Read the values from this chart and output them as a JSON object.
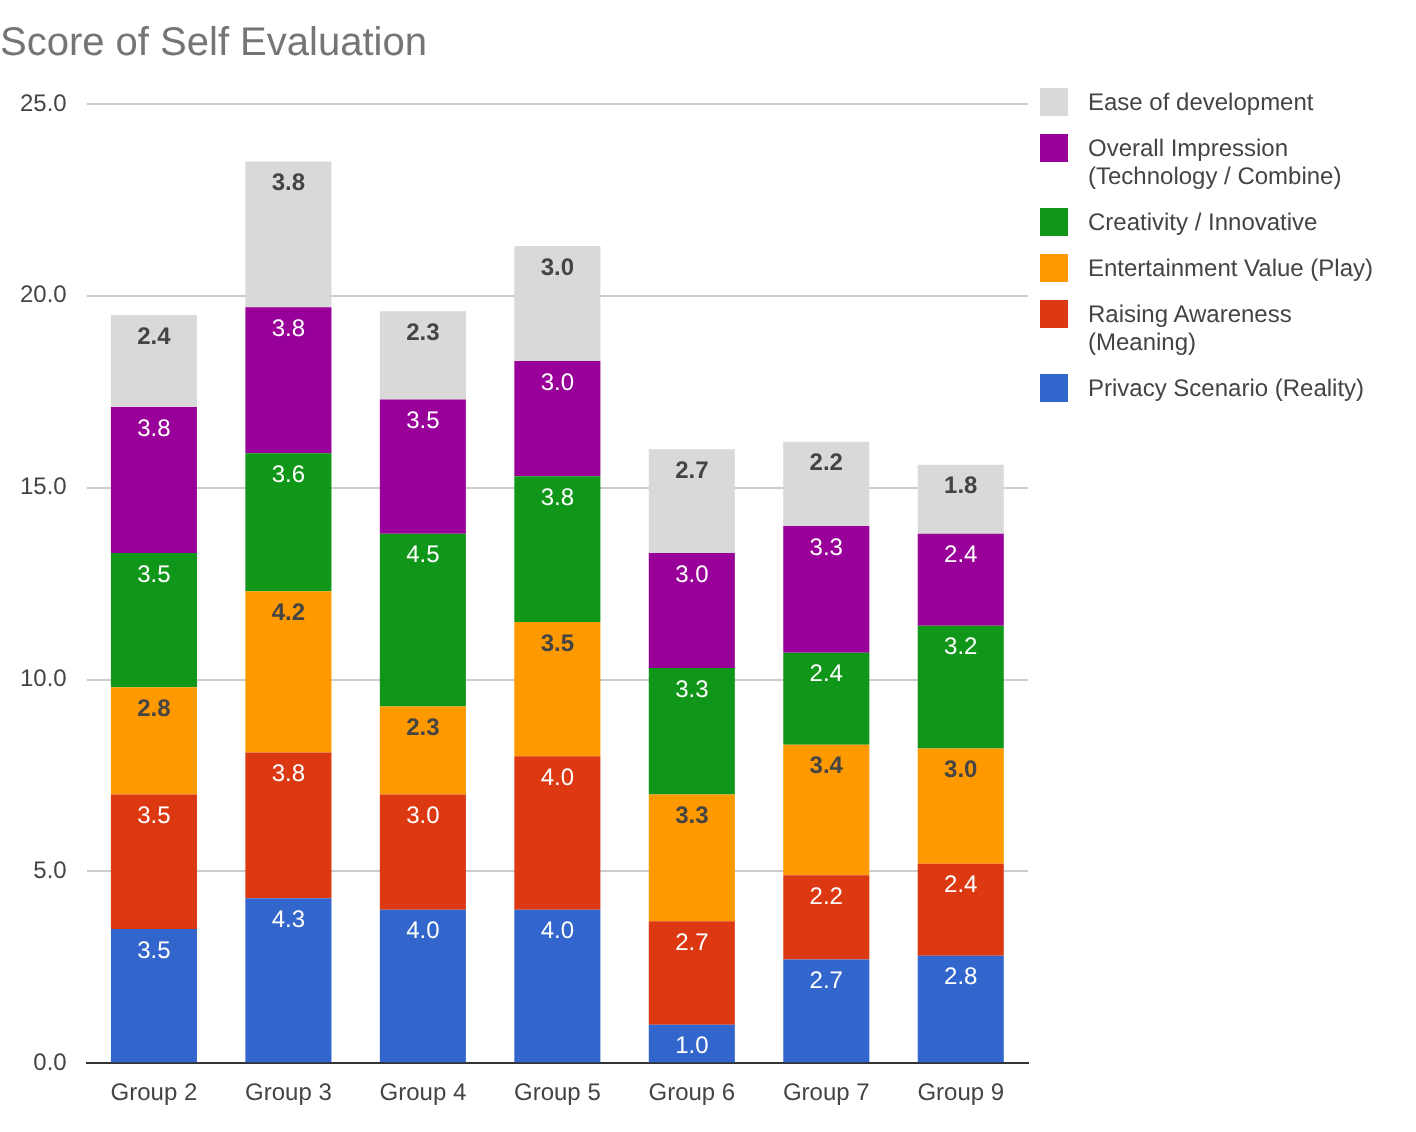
{
  "chart_data": {
    "type": "bar",
    "title": "Score of Self Evaluation",
    "stacked": true,
    "legend": "top right",
    "grid": "y",
    "categories": [
      "Group 2",
      "Group 3",
      "Group 4",
      "Group 5",
      "Group 6",
      "Group 7",
      "Group 9"
    ],
    "ylim": [
      0,
      25
    ],
    "yticks": [
      {
        "value": 0,
        "label": "0.0"
      },
      {
        "value": 5,
        "label": "5.0"
      },
      {
        "value": 10,
        "label": "10.0"
      },
      {
        "value": 15,
        "label": "15.0"
      },
      {
        "value": 20,
        "label": "20.0"
      },
      {
        "value": 25,
        "label": "25.0"
      }
    ],
    "series": [
      {
        "name": "Privacy Scenario (Reality)",
        "color": "#3366cc",
        "values": [
          3.5,
          4.3,
          4.0,
          4.0,
          1.0,
          2.7,
          2.8
        ],
        "value_labels": [
          "3.5",
          "4.3",
          "4.0",
          "4.0",
          "1.0",
          "2.7",
          "2.8"
        ]
      },
      {
        "name": "Raising Awareness (Meaning)",
        "color": "#dc3912",
        "values": [
          3.5,
          3.8,
          3.0,
          4.0,
          2.7,
          2.2,
          2.4
        ],
        "value_labels": [
          "3.5",
          "3.8",
          "3.0",
          "4.0",
          "2.7",
          "2.2",
          "2.4"
        ]
      },
      {
        "name": "Entertainment Value (Play)",
        "color": "#ff9900",
        "values": [
          2.8,
          4.2,
          2.3,
          3.5,
          3.3,
          3.4,
          3.0
        ],
        "value_labels": [
          "2.8",
          "4.2",
          "2.3",
          "3.5",
          "3.3",
          "3.4",
          "3.0"
        ]
      },
      {
        "name": "Creativity / Innovative",
        "color": "#109618",
        "values": [
          3.5,
          3.6,
          4.5,
          3.8,
          3.3,
          2.4,
          3.2
        ],
        "value_labels": [
          "3.5",
          "3.6",
          "4.5",
          "3.8",
          "3.3",
          "2.4",
          "3.2"
        ]
      },
      {
        "name": "Overall Impression (Technology / Combine)",
        "color": "#990099",
        "values": [
          3.8,
          3.8,
          3.5,
          3.0,
          3.0,
          3.3,
          2.4
        ],
        "value_labels": [
          "3.8",
          "3.8",
          "3.5",
          "3.0",
          "3.0",
          "3.3",
          "2.4"
        ]
      },
      {
        "name": "Ease of development",
        "color": "#d9d9d9",
        "values": [
          2.4,
          3.8,
          2.3,
          3.0,
          2.7,
          2.2,
          1.8
        ],
        "value_labels": [
          "2.4",
          "3.8",
          "2.3",
          "3.0",
          "2.7",
          "2.2",
          "1.8"
        ]
      }
    ]
  }
}
